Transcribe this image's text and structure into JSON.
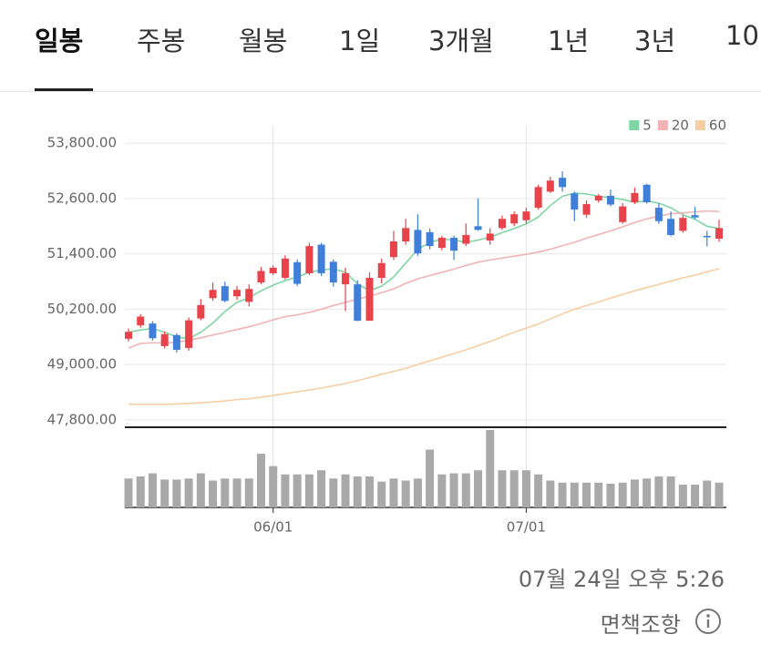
{
  "tabs": [
    "일봉",
    "주봉",
    "월봉",
    "1일",
    "3개월",
    "1년",
    "3년",
    "10"
  ],
  "timestamp": "07월 24일 오후 5:26",
  "disclaimer": "면책조항",
  "chart_data": {
    "type": "candlestick",
    "categories": [
      null,
      null,
      null,
      null,
      null,
      null,
      null,
      null,
      null,
      null,
      null,
      null,
      "06/01",
      null,
      null,
      null,
      null,
      null,
      null,
      null,
      null,
      null,
      null,
      null,
      null,
      null,
      null,
      null,
      null,
      null,
      null,
      null,
      null,
      "07/01",
      null,
      null,
      null,
      null,
      null,
      null,
      null,
      null,
      null,
      null,
      null,
      null,
      null,
      null,
      null,
      null
    ],
    "open": [
      49560,
      49850,
      49890,
      49400,
      49640,
      49360,
      50000,
      50440,
      50700,
      50480,
      50360,
      50780,
      50980,
      50880,
      51220,
      50980,
      51600,
      51230,
      50740,
      50740,
      49950,
      50880,
      51330,
      51670,
      51920,
      51870,
      51530,
      51750,
      51620,
      52000,
      51690,
      51960,
      52060,
      52130,
      52400,
      52750,
      53050,
      52710,
      52250,
      52560,
      52660,
      52090,
      52520,
      52900,
      52400,
      52160,
      51900,
      52240,
      51790,
      51730
    ],
    "close": [
      49710,
      50040,
      49570,
      49660,
      49320,
      49960,
      50290,
      50620,
      50380,
      50620,
      50640,
      51030,
      51100,
      51300,
      50750,
      51570,
      50980,
      50780,
      50980,
      49950,
      50880,
      51200,
      51670,
      51960,
      51410,
      51570,
      51750,
      51470,
      51810,
      51920,
      51840,
      52160,
      52260,
      52320,
      52850,
      52990,
      52850,
      52360,
      52480,
      52660,
      52470,
      52430,
      52720,
      52520,
      52110,
      51810,
      52180,
      52190,
      51760,
      51960
    ],
    "high": [
      49780,
      50090,
      49940,
      49720,
      49680,
      50020,
      50420,
      50780,
      50800,
      50700,
      50740,
      51120,
      51150,
      51370,
      51280,
      51640,
      51640,
      51280,
      51100,
      50830,
      51000,
      51300,
      51900,
      52160,
      52260,
      51950,
      51790,
      51800,
      52060,
      52600,
      51960,
      52230,
      52320,
      52400,
      52900,
      53070,
      53190,
      52750,
      52560,
      52700,
      52800,
      52500,
      52840,
      52920,
      52500,
      52320,
      52240,
      52420,
      51900,
      52140
    ],
    "low": [
      49500,
      49800,
      49520,
      49350,
      49260,
      49300,
      49960,
      50380,
      50350,
      50400,
      50260,
      50740,
      50940,
      50840,
      50700,
      50940,
      50920,
      50690,
      50160,
      49940,
      49950,
      50760,
      51270,
      51600,
      51360,
      51500,
      51480,
      51270,
      51570,
      51900,
      51600,
      51920,
      52000,
      52060,
      52360,
      52720,
      52750,
      52110,
      52180,
      52510,
      52430,
      52050,
      52480,
      52490,
      52050,
      51780,
      51860,
      52150,
      51560,
      51660
    ],
    "up_color": "#e8434a",
    "down_color": "#3f7fd9",
    "series": [
      {
        "name": "5",
        "color": "#7fd6a4",
        "values": [
          49700,
          49750,
          49780,
          49700,
          49600,
          49560,
          49700,
          49900,
          50150,
          50350,
          50450,
          50600,
          50720,
          50820,
          50900,
          51000,
          51050,
          51080,
          51000,
          50750,
          50600,
          50700,
          50900,
          51200,
          51500,
          51650,
          51720,
          51700,
          51650,
          51700,
          51760,
          51860,
          51950,
          52050,
          52200,
          52450,
          52650,
          52720,
          52700,
          52650,
          52620,
          52580,
          52520,
          52550,
          52500,
          52400,
          52250,
          52150,
          52000,
          51950
        ]
      },
      {
        "name": "20",
        "color": "#f1b3b3",
        "values": [
          49360,
          49460,
          49470,
          49470,
          49480,
          49530,
          49580,
          49640,
          49700,
          49760,
          49820,
          49890,
          49970,
          50040,
          50080,
          50130,
          50200,
          50280,
          50350,
          50420,
          50480,
          50560,
          50640,
          50760,
          50860,
          50930,
          51000,
          51070,
          51150,
          51220,
          51270,
          51310,
          51350,
          51390,
          51440,
          51500,
          51580,
          51650,
          51740,
          51820,
          51900,
          51990,
          52080,
          52160,
          52220,
          52270,
          52290,
          52310,
          52330,
          52320
        ]
      },
      {
        "name": "60",
        "color": "#f5cfa3",
        "values": [
          48140,
          48140,
          48140,
          48140,
          48145,
          48155,
          48170,
          48190,
          48210,
          48240,
          48260,
          48290,
          48330,
          48370,
          48410,
          48450,
          48490,
          48540,
          48590,
          48650,
          48720,
          48790,
          48850,
          48920,
          49000,
          49080,
          49160,
          49240,
          49320,
          49410,
          49500,
          49600,
          49700,
          49790,
          49880,
          49990,
          50100,
          50200,
          50280,
          50360,
          50440,
          50520,
          50600,
          50670,
          50740,
          50810,
          50880,
          50940,
          51010,
          51080
        ]
      }
    ],
    "volume": {
      "color": "#a9a9a9",
      "values": [
        28,
        30,
        33,
        27,
        27,
        28,
        33,
        26,
        28,
        28,
        28,
        52,
        40,
        32,
        32,
        32,
        36,
        28,
        32,
        30,
        30,
        25,
        28,
        26,
        28,
        56,
        32,
        33,
        33,
        36,
        75,
        36,
        36,
        36,
        32,
        26,
        24,
        24,
        24,
        24,
        23,
        24,
        27,
        28,
        30,
        30,
        22,
        22,
        26,
        24
      ]
    },
    "ylim": [
      47640,
      54160
    ],
    "yticks": [
      {
        "value": 47800,
        "label": "47,800.00"
      },
      {
        "value": 49000,
        "label": "49,000.00"
      },
      {
        "value": 50200,
        "label": "50,200.00"
      },
      {
        "value": 51400,
        "label": "51,400.00"
      },
      {
        "value": 52600,
        "label": "52,600.00"
      },
      {
        "value": 53800,
        "label": "53,800.00"
      }
    ],
    "grid": true
  }
}
